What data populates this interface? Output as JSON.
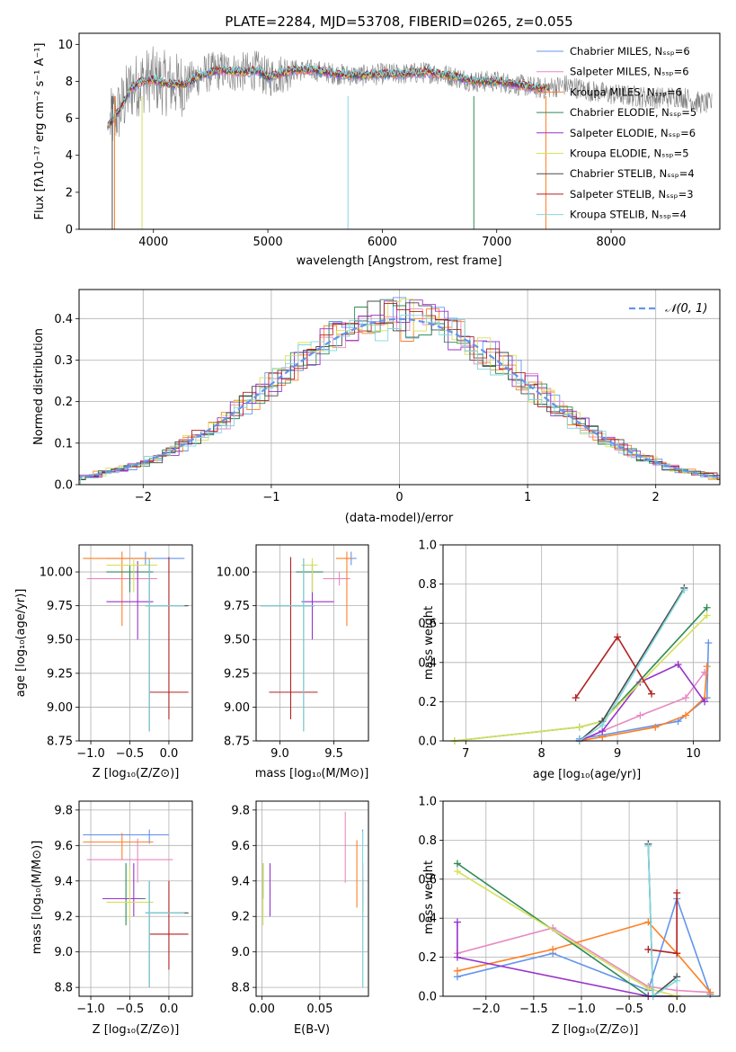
{
  "chart_data": [
    {
      "id": "spectrum",
      "type": "line",
      "title": "PLATE=2284, MJD=53708, FIBERID=0265, z=0.055",
      "xlabel": "wavelength [Angstrom, rest frame]",
      "ylabel": "Flux [fλ10⁻¹⁷ erg cm⁻² s⁻¹ A⁻¹]",
      "xlim": [
        3350,
        8950
      ],
      "ylim": [
        0,
        10.6
      ],
      "xticks": [
        4000,
        5000,
        6000,
        7000,
        8000
      ],
      "yticks": [
        0,
        2,
        4,
        6,
        8,
        10
      ],
      "grid": false,
      "legend_position": "right",
      "series": [
        {
          "name": "Chabrier MILES, Nₛₛₚ=6",
          "color": "#6495ed"
        },
        {
          "name": "Salpeter MILES, Nₛₛₚ=6",
          "color": "#e78ac3"
        },
        {
          "name": "Kroupa MILES, Nₛₛₚ=6",
          "color": "#ff7f24"
        },
        {
          "name": "Chabrier ELODIE, Nₛₛₚ=5",
          "color": "#2e8b57"
        },
        {
          "name": "Salpeter ELODIE, Nₛₛₚ=6",
          "color": "#9932cc"
        },
        {
          "name": "Kroupa ELODIE, Nₛₛₚ=5",
          "color": "#d4e157"
        },
        {
          "name": "Chabrier STELIB, Nₛₛₚ=4",
          "color": "#4a4a4a"
        },
        {
          "name": "Salpeter STELIB, Nₛₛₚ=3",
          "color": "#b22222"
        },
        {
          "name": "Kroupa STELIB, Nₛₛₚ=4",
          "color": "#80d8e0"
        }
      ],
      "continuum": {
        "x": [
          3600,
          3700,
          3800,
          3900,
          4000,
          4100,
          4200,
          4300,
          4400,
          4500,
          4600,
          4700,
          4800,
          4900,
          5000,
          5200,
          5400,
          5600,
          5800,
          6000,
          6200,
          6400,
          6600,
          6800,
          7000,
          7200,
          7400,
          7600,
          7800,
          8000,
          8200,
          8400,
          8600,
          8800
        ],
        "y": [
          5.6,
          6.4,
          7.6,
          8.0,
          8.1,
          7.9,
          7.8,
          7.9,
          8.3,
          8.5,
          8.6,
          8.5,
          8.5,
          8.6,
          8.2,
          8.6,
          8.6,
          8.4,
          8.3,
          8.4,
          8.4,
          8.5,
          8.3,
          8.0,
          8.0,
          7.8,
          7.6,
          7.8,
          7.5,
          7.3,
          7.2,
          7.1,
          7.2,
          6.8
        ]
      },
      "dips": [
        {
          "x": 3640,
          "color": "#4a4a4a"
        },
        {
          "x": 3660,
          "color": "#ff7f24"
        },
        {
          "x": 3900,
          "color": "#d4e157"
        },
        {
          "x": 5700,
          "color": "#80d8e0"
        },
        {
          "x": 6800,
          "color": "#2e8b57"
        },
        {
          "x": 7430,
          "color": "#ff7f24"
        }
      ]
    },
    {
      "id": "residuals",
      "type": "area",
      "xlabel": "(data-model)/error",
      "ylabel": "Normed distribution",
      "xlim": [
        -2.5,
        2.5
      ],
      "ylim": [
        0,
        0.47
      ],
      "xticks": [
        -2,
        -1,
        0,
        1,
        2
      ],
      "yticks": [
        0.0,
        0.1,
        0.2,
        0.3,
        0.4
      ],
      "grid": true,
      "legend": [
        {
          "name": "𝒩(0, 1)",
          "color": "#6495ed",
          "style": "dashed"
        }
      ],
      "legend_position": "top-right",
      "gaussian": {
        "mean": 0,
        "sigma": 1
      }
    },
    {
      "id": "age-vs-z",
      "type": "scatter",
      "xlabel": "Z [log₁₀(Z/Z⊙)]",
      "ylabel": "age  [log₁₀(age/yr)]",
      "xlim": [
        -1.15,
        0.3
      ],
      "ylim": [
        8.75,
        10.2
      ],
      "xticks": [
        -1.0,
        -0.5,
        0.0
      ],
      "yticks": [
        8.75,
        9.0,
        9.25,
        9.5,
        9.75,
        10.0
      ],
      "grid": true,
      "points": [
        {
          "x": -0.3,
          "y": 10.1,
          "xerr": [
            0.5,
            0.5
          ],
          "yerr": [
            0.05,
            0.05
          ],
          "color": "#6495ed"
        },
        {
          "x": -0.5,
          "y": 9.95,
          "xerr": [
            0.55,
            0.35
          ],
          "yerr": [
            0.05,
            0.05
          ],
          "color": "#e78ac3"
        },
        {
          "x": -0.6,
          "y": 10.1,
          "xerr": [
            0.5,
            0.4
          ],
          "yerr": [
            0.5,
            0.05
          ],
          "color": "#ff7f24"
        },
        {
          "x": -0.5,
          "y": 10.0,
          "xerr": [
            0.3,
            0.3
          ],
          "yerr": [
            0.15,
            0.05
          ],
          "color": "#2e8b57"
        },
        {
          "x": -0.4,
          "y": 9.78,
          "xerr": [
            0.4,
            0.2
          ],
          "yerr": [
            0.28,
            0.3
          ],
          "color": "#9932cc"
        },
        {
          "x": -0.45,
          "y": 10.05,
          "xerr": [
            0.35,
            0.3
          ],
          "yerr": [
            0.2,
            0.05
          ],
          "color": "#d4e157"
        },
        {
          "x": -0.25,
          "y": 9.75,
          "xerr": [
            0.05,
            0.5
          ],
          "yerr": [
            0.93,
            0.35
          ],
          "color": "#4a4a4a"
        },
        {
          "x": 0.0,
          "y": 9.11,
          "xerr": [
            0.25,
            0.25
          ],
          "yerr": [
            0.2,
            1.0
          ],
          "color": "#b22222"
        },
        {
          "x": -0.25,
          "y": 9.75,
          "xerr": [
            0.05,
            0.45
          ],
          "yerr": [
            0.93,
            0.35
          ],
          "color": "#80d8e0"
        }
      ]
    },
    {
      "id": "age-vs-mass",
      "type": "scatter",
      "xlabel": "mass [log₁₀(M/M⊙)]",
      "ylabel": "",
      "xlim": [
        8.78,
        9.82
      ],
      "ylim": [
        8.75,
        10.2
      ],
      "xticks": [
        9.0,
        9.5
      ],
      "yticks": [
        8.75,
        9.0,
        9.25,
        9.5,
        9.75,
        10.0
      ],
      "grid": true,
      "points": [
        {
          "x": 9.66,
          "y": 10.1,
          "xerr": [
            0.06,
            0.05
          ],
          "yerr": [
            0.05,
            0.05
          ],
          "color": "#6495ed"
        },
        {
          "x": 9.55,
          "y": 9.95,
          "xerr": [
            0.15,
            0.1
          ],
          "yerr": [
            0.05,
            0.05
          ],
          "color": "#e78ac3"
        },
        {
          "x": 9.62,
          "y": 10.1,
          "xerr": [
            0.1,
            0.05
          ],
          "yerr": [
            0.5,
            0.05
          ],
          "color": "#ff7f24"
        },
        {
          "x": 9.3,
          "y": 10.0,
          "xerr": [
            0.15,
            0.1
          ],
          "yerr": [
            0.15,
            0.05
          ],
          "color": "#2e8b57"
        },
        {
          "x": 9.3,
          "y": 9.78,
          "xerr": [
            0.1,
            0.2
          ],
          "yerr": [
            0.28,
            0.3
          ],
          "color": "#9932cc"
        },
        {
          "x": 9.3,
          "y": 10.05,
          "xerr": [
            0.1,
            0.05
          ],
          "yerr": [
            0.2,
            0.05
          ],
          "color": "#d4e157"
        },
        {
          "x": 9.22,
          "y": 9.75,
          "xerr": [
            0.4,
            0.1
          ],
          "yerr": [
            0.93,
            0.35
          ],
          "color": "#4a4a4a"
        },
        {
          "x": 9.1,
          "y": 9.11,
          "xerr": [
            0.2,
            0.25
          ],
          "yerr": [
            0.2,
            1.0
          ],
          "color": "#b22222"
        },
        {
          "x": 9.22,
          "y": 9.75,
          "xerr": [
            0.4,
            0.1
          ],
          "yerr": [
            0.93,
            0.35
          ],
          "color": "#80d8e0"
        }
      ]
    },
    {
      "id": "massweight-vs-age",
      "type": "line",
      "xlabel": "age  [log₁₀(age/yr)]",
      "ylabel": "mass weight",
      "xlim": [
        6.7,
        10.35
      ],
      "ylim": [
        0,
        1.0
      ],
      "xticks": [
        7,
        8,
        9,
        10
      ],
      "yticks": [
        0.0,
        0.2,
        0.4,
        0.6,
        0.8,
        1.0
      ],
      "grid": true,
      "series": [
        {
          "color": "#6495ed",
          "x": [
            8.5,
            8.8,
            9.8,
            10.18,
            10.2
          ],
          "y": [
            0.01,
            0.03,
            0.1,
            0.22,
            0.5
          ]
        },
        {
          "color": "#e78ac3",
          "x": [
            8.5,
            8.8,
            9.3,
            9.9,
            10.15
          ],
          "y": [
            0.0,
            0.05,
            0.13,
            0.22,
            0.35
          ]
        },
        {
          "color": "#ff7f24",
          "x": [
            8.5,
            8.8,
            9.5,
            9.9,
            10.15,
            10.18
          ],
          "y": [
            0.0,
            0.02,
            0.07,
            0.13,
            0.22,
            0.38
          ]
        },
        {
          "color": "#2e8b57",
          "x": [
            6.85,
            8.5,
            8.8,
            10.18
          ],
          "y": [
            0.0,
            0.07,
            0.1,
            0.68
          ]
        },
        {
          "color": "#9932cc",
          "x": [
            8.5,
            8.8,
            9.3,
            9.8,
            10.15
          ],
          "y": [
            0.0,
            0.05,
            0.3,
            0.39,
            0.2
          ]
        },
        {
          "color": "#d4e157",
          "x": [
            6.85,
            8.5,
            8.8,
            10.18
          ],
          "y": [
            0.0,
            0.07,
            0.1,
            0.64
          ]
        },
        {
          "color": "#4a4a4a",
          "x": [
            8.5,
            8.8,
            9.88
          ],
          "y": [
            0.0,
            0.1,
            0.78
          ]
        },
        {
          "color": "#b22222",
          "x": [
            8.45,
            9.0,
            9.45
          ],
          "y": [
            0.22,
            0.53,
            0.24
          ]
        },
        {
          "color": "#80d8e0",
          "x": [
            8.5,
            8.8,
            9.88
          ],
          "y": [
            0.0,
            0.08,
            0.77
          ]
        }
      ]
    },
    {
      "id": "mass-vs-z",
      "type": "scatter",
      "xlabel": "Z [log₁₀(Z/Z⊙)]",
      "ylabel": "mass [log₁₀(M/M⊙)]",
      "xlim": [
        -1.15,
        0.3
      ],
      "ylim": [
        8.75,
        9.85
      ],
      "xticks": [
        -1.0,
        -0.5,
        0.0
      ],
      "yticks": [
        8.8,
        9.0,
        9.2,
        9.4,
        9.6,
        9.8
      ],
      "grid": true,
      "points": [
        {
          "x": -0.25,
          "y": 9.66,
          "xerr": [
            0.85,
            0.25
          ],
          "yerr": [
            0.05,
            0.03
          ],
          "color": "#6495ed"
        },
        {
          "x": -0.4,
          "y": 9.52,
          "xerr": [
            0.65,
            0.45
          ],
          "yerr": [
            0.13,
            0.12
          ],
          "color": "#e78ac3"
        },
        {
          "x": -0.6,
          "y": 9.62,
          "xerr": [
            0.5,
            0.4
          ],
          "yerr": [
            0.1,
            0.05
          ],
          "color": "#ff7f24"
        },
        {
          "x": -0.55,
          "y": 9.3,
          "xerr": [
            0.3,
            0.25
          ],
          "yerr": [
            0.15,
            0.2
          ],
          "color": "#2e8b57"
        },
        {
          "x": -0.45,
          "y": 9.3,
          "xerr": [
            0.4,
            0.1
          ],
          "yerr": [
            0.1,
            0.2
          ],
          "color": "#9932cc"
        },
        {
          "x": -0.5,
          "y": 9.28,
          "xerr": [
            0.3,
            0.3
          ],
          "yerr": [
            0.1,
            0.2
          ],
          "color": "#d4e157"
        },
        {
          "x": -0.25,
          "y": 9.22,
          "xerr": [
            0.05,
            0.5
          ],
          "yerr": [
            0.42,
            0.18
          ],
          "color": "#4a4a4a"
        },
        {
          "x": 0.0,
          "y": 9.1,
          "xerr": [
            0.25,
            0.25
          ],
          "yerr": [
            0.2,
            0.3
          ],
          "color": "#b22222"
        },
        {
          "x": -0.25,
          "y": 9.22,
          "xerr": [
            0.05,
            0.45
          ],
          "yerr": [
            0.42,
            0.18
          ],
          "color": "#80d8e0"
        }
      ]
    },
    {
      "id": "mass-vs-ebv",
      "type": "scatter",
      "xlabel": "E(B-V)",
      "ylabel": "",
      "xlim": [
        -0.005,
        0.092
      ],
      "ylim": [
        8.75,
        9.85
      ],
      "xticks": [
        0.0,
        0.05
      ],
      "yticks": [
        8.8,
        9.0,
        9.2,
        9.4,
        9.6,
        9.8
      ],
      "grid": true,
      "points": [
        {
          "x": 0.087,
          "y": 9.66,
          "xerr": [
            0,
            0
          ],
          "yerr": [
            0.05,
            0.03
          ],
          "color": "#6495ed"
        },
        {
          "x": 0.072,
          "y": 9.52,
          "xerr": [
            0,
            0
          ],
          "yerr": [
            0.13,
            0.27
          ],
          "color": "#e78ac3"
        },
        {
          "x": 0.082,
          "y": 9.4,
          "xerr": [
            0,
            0
          ],
          "yerr": [
            0.15,
            0.23
          ],
          "color": "#ff7f24"
        },
        {
          "x": 0.001,
          "y": 9.4,
          "xerr": [
            0,
            0
          ],
          "yerr": [
            0.1,
            0.1
          ],
          "color": "#2e8b57"
        },
        {
          "x": 0.007,
          "y": 9.3,
          "xerr": [
            0,
            0
          ],
          "yerr": [
            0.1,
            0.2
          ],
          "color": "#9932cc"
        },
        {
          "x": 0.001,
          "y": 9.3,
          "xerr": [
            0,
            0
          ],
          "yerr": [
            0.15,
            0.2
          ],
          "color": "#d4e157"
        },
        {
          "x": 0.087,
          "y": 9.22,
          "xerr": [
            0,
            0
          ],
          "yerr": [
            0.42,
            0.2
          ],
          "color": "#4a4a4a"
        },
        {
          "x": 0.087,
          "y": 9.35,
          "xerr": [
            0,
            0
          ],
          "yerr": [
            0.12,
            0.15
          ],
          "color": "#b22222"
        },
        {
          "x": 0.087,
          "y": 9.22,
          "xerr": [
            0,
            0
          ],
          "yerr": [
            0.42,
            0.46
          ],
          "color": "#80d8e0"
        }
      ]
    },
    {
      "id": "massweight-vs-z",
      "type": "line",
      "xlabel": "Z [log₁₀(Z/Z⊙)]",
      "ylabel": "mass weight",
      "xlim": [
        -2.45,
        0.45
      ],
      "ylim": [
        0,
        1.0
      ],
      "xticks": [
        -2.0,
        -1.5,
        -1.0,
        -0.5,
        0.0
      ],
      "yticks": [
        0.0,
        0.2,
        0.4,
        0.6,
        0.8,
        1.0
      ],
      "grid": true,
      "series": [
        {
          "color": "#6495ed",
          "x": [
            -2.3,
            -1.3,
            -0.3,
            0.0,
            0.35
          ],
          "y": [
            0.1,
            0.22,
            0.03,
            0.5,
            0.01
          ]
        },
        {
          "color": "#e78ac3",
          "x": [
            -2.3,
            -1.3,
            -0.3,
            0.0,
            0.35
          ],
          "y": [
            0.22,
            0.35,
            0.05,
            0.03,
            0.02
          ]
        },
        {
          "color": "#ff7f24",
          "x": [
            -2.3,
            -1.3,
            -0.3,
            0.0,
            0.35
          ],
          "y": [
            0.13,
            0.24,
            0.38,
            0.22,
            0.02
          ]
        },
        {
          "color": "#2e8b57",
          "x": [
            -2.3,
            -0.3,
            0.0
          ],
          "y": [
            0.68,
            0.0,
            0.0
          ]
        },
        {
          "color": "#9932cc",
          "x": [
            -2.3,
            -2.3,
            -0.3,
            0.0
          ],
          "y": [
            0.38,
            0.2,
            0.0,
            0.0
          ]
        },
        {
          "color": "#d4e157",
          "x": [
            -2.3,
            -0.3,
            0.0
          ],
          "y": [
            0.64,
            0.04,
            0.0
          ]
        },
        {
          "color": "#4a4a4a",
          "x": [
            -0.3,
            -0.25,
            0.0
          ],
          "y": [
            0.78,
            0.0,
            0.1
          ]
        },
        {
          "color": "#b22222",
          "x": [
            -0.3,
            0.0,
            0.0
          ],
          "y": [
            0.24,
            0.22,
            0.53
          ]
        },
        {
          "color": "#80d8e0",
          "x": [
            -0.3,
            -0.25,
            0.0
          ],
          "y": [
            0.77,
            0.0,
            0.08
          ]
        }
      ]
    }
  ]
}
